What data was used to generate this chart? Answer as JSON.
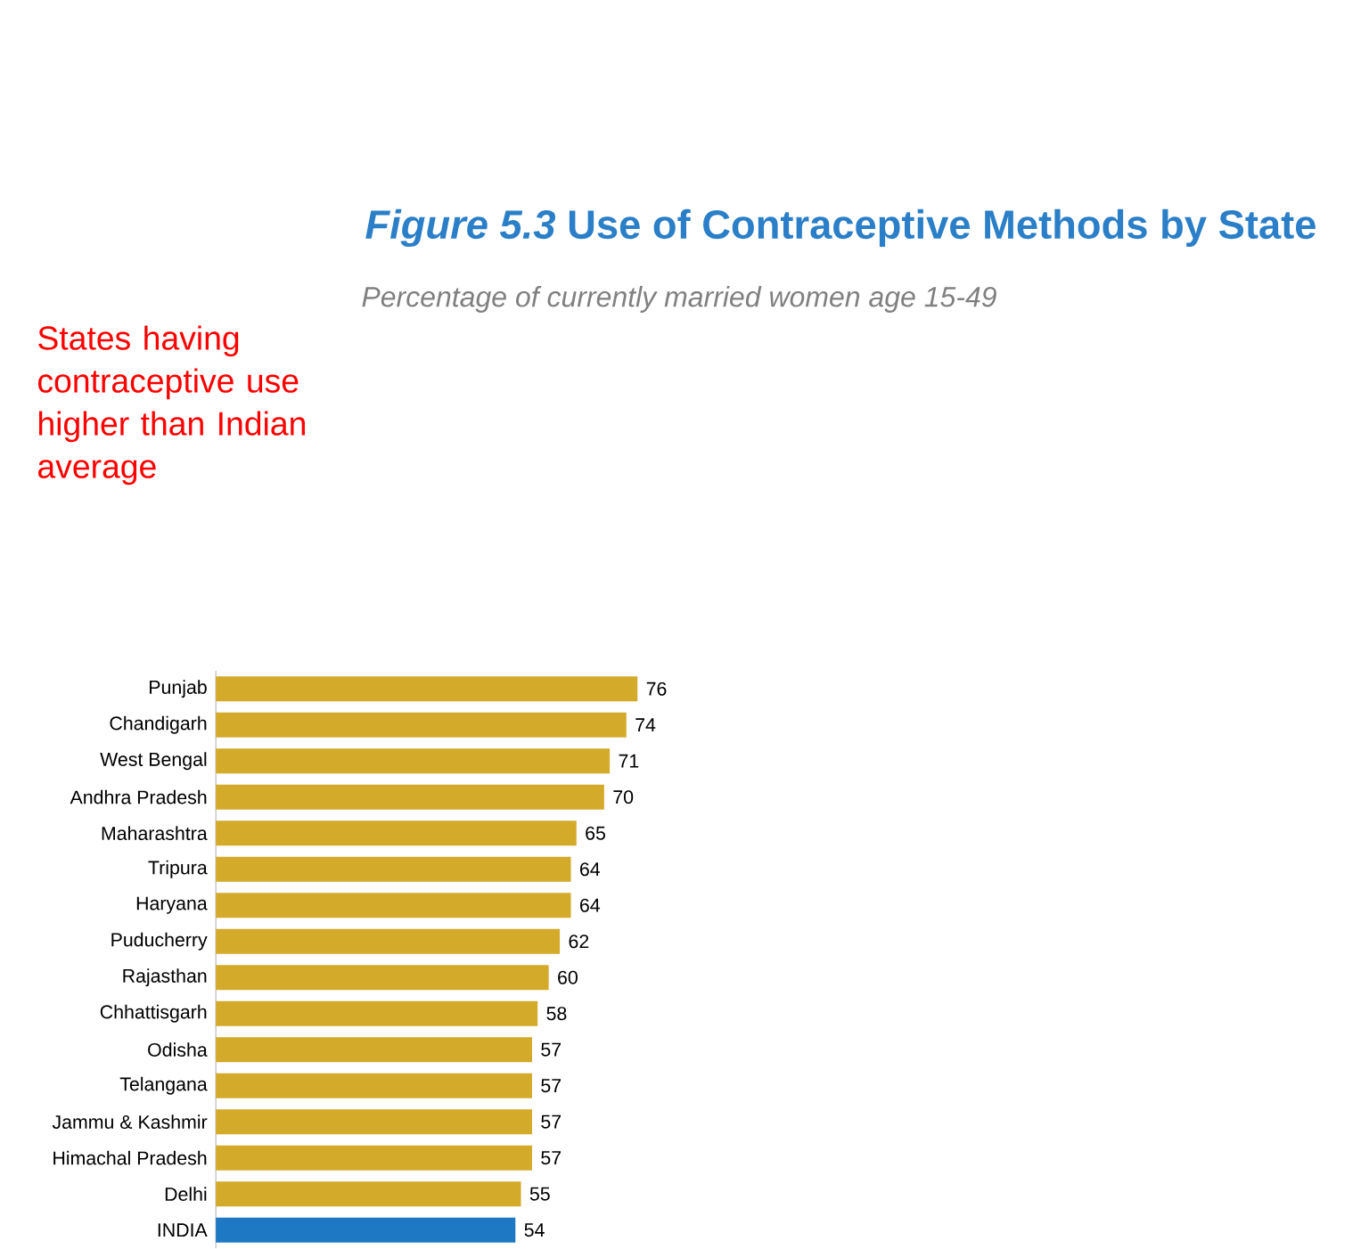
{
  "chart_data": {
    "type": "bar",
    "orientation": "horizontal",
    "title": "*Figure 5.3* Use of Contraceptive Methods by State",
    "subtitle": "Percentage of currently married women age 15-49",
    "annotations": [
      "States having contraceptive use higher than Indian average"
    ],
    "categories": [
      "Punjab",
      "Chandigarh",
      "West Bengal",
      "Andhra Pradesh",
      "Maharashtra",
      "Tripura",
      "Haryana",
      "Puducherry",
      "Rajasthan",
      "Chhattisgarh",
      "Odisha",
      "Telangana",
      "Jammu & Kashmir",
      "Himachal Pradesh",
      "Delhi",
      "INDIA"
    ],
    "values": [
      76,
      74,
      71,
      70,
      65,
      64,
      64,
      62,
      60,
      58,
      57,
      57,
      57,
      57,
      55,
      54
    ],
    "colors": [
      "#d4aa2a",
      "#d4aa2a",
      "#d4aa2a",
      "#d4aa2a",
      "#d4aa2a",
      "#d4aa2a",
      "#d4aa2a",
      "#d4aa2a",
      "#d4aa2a",
      "#d4aa2a",
      "#d4aa2a",
      "#d4aa2a",
      "#d4aa2a",
      "#d4aa2a",
      "#d4aa2a",
      "#1f78c4"
    ],
    "data_labels": true,
    "tick_labels": "y"
  }
}
